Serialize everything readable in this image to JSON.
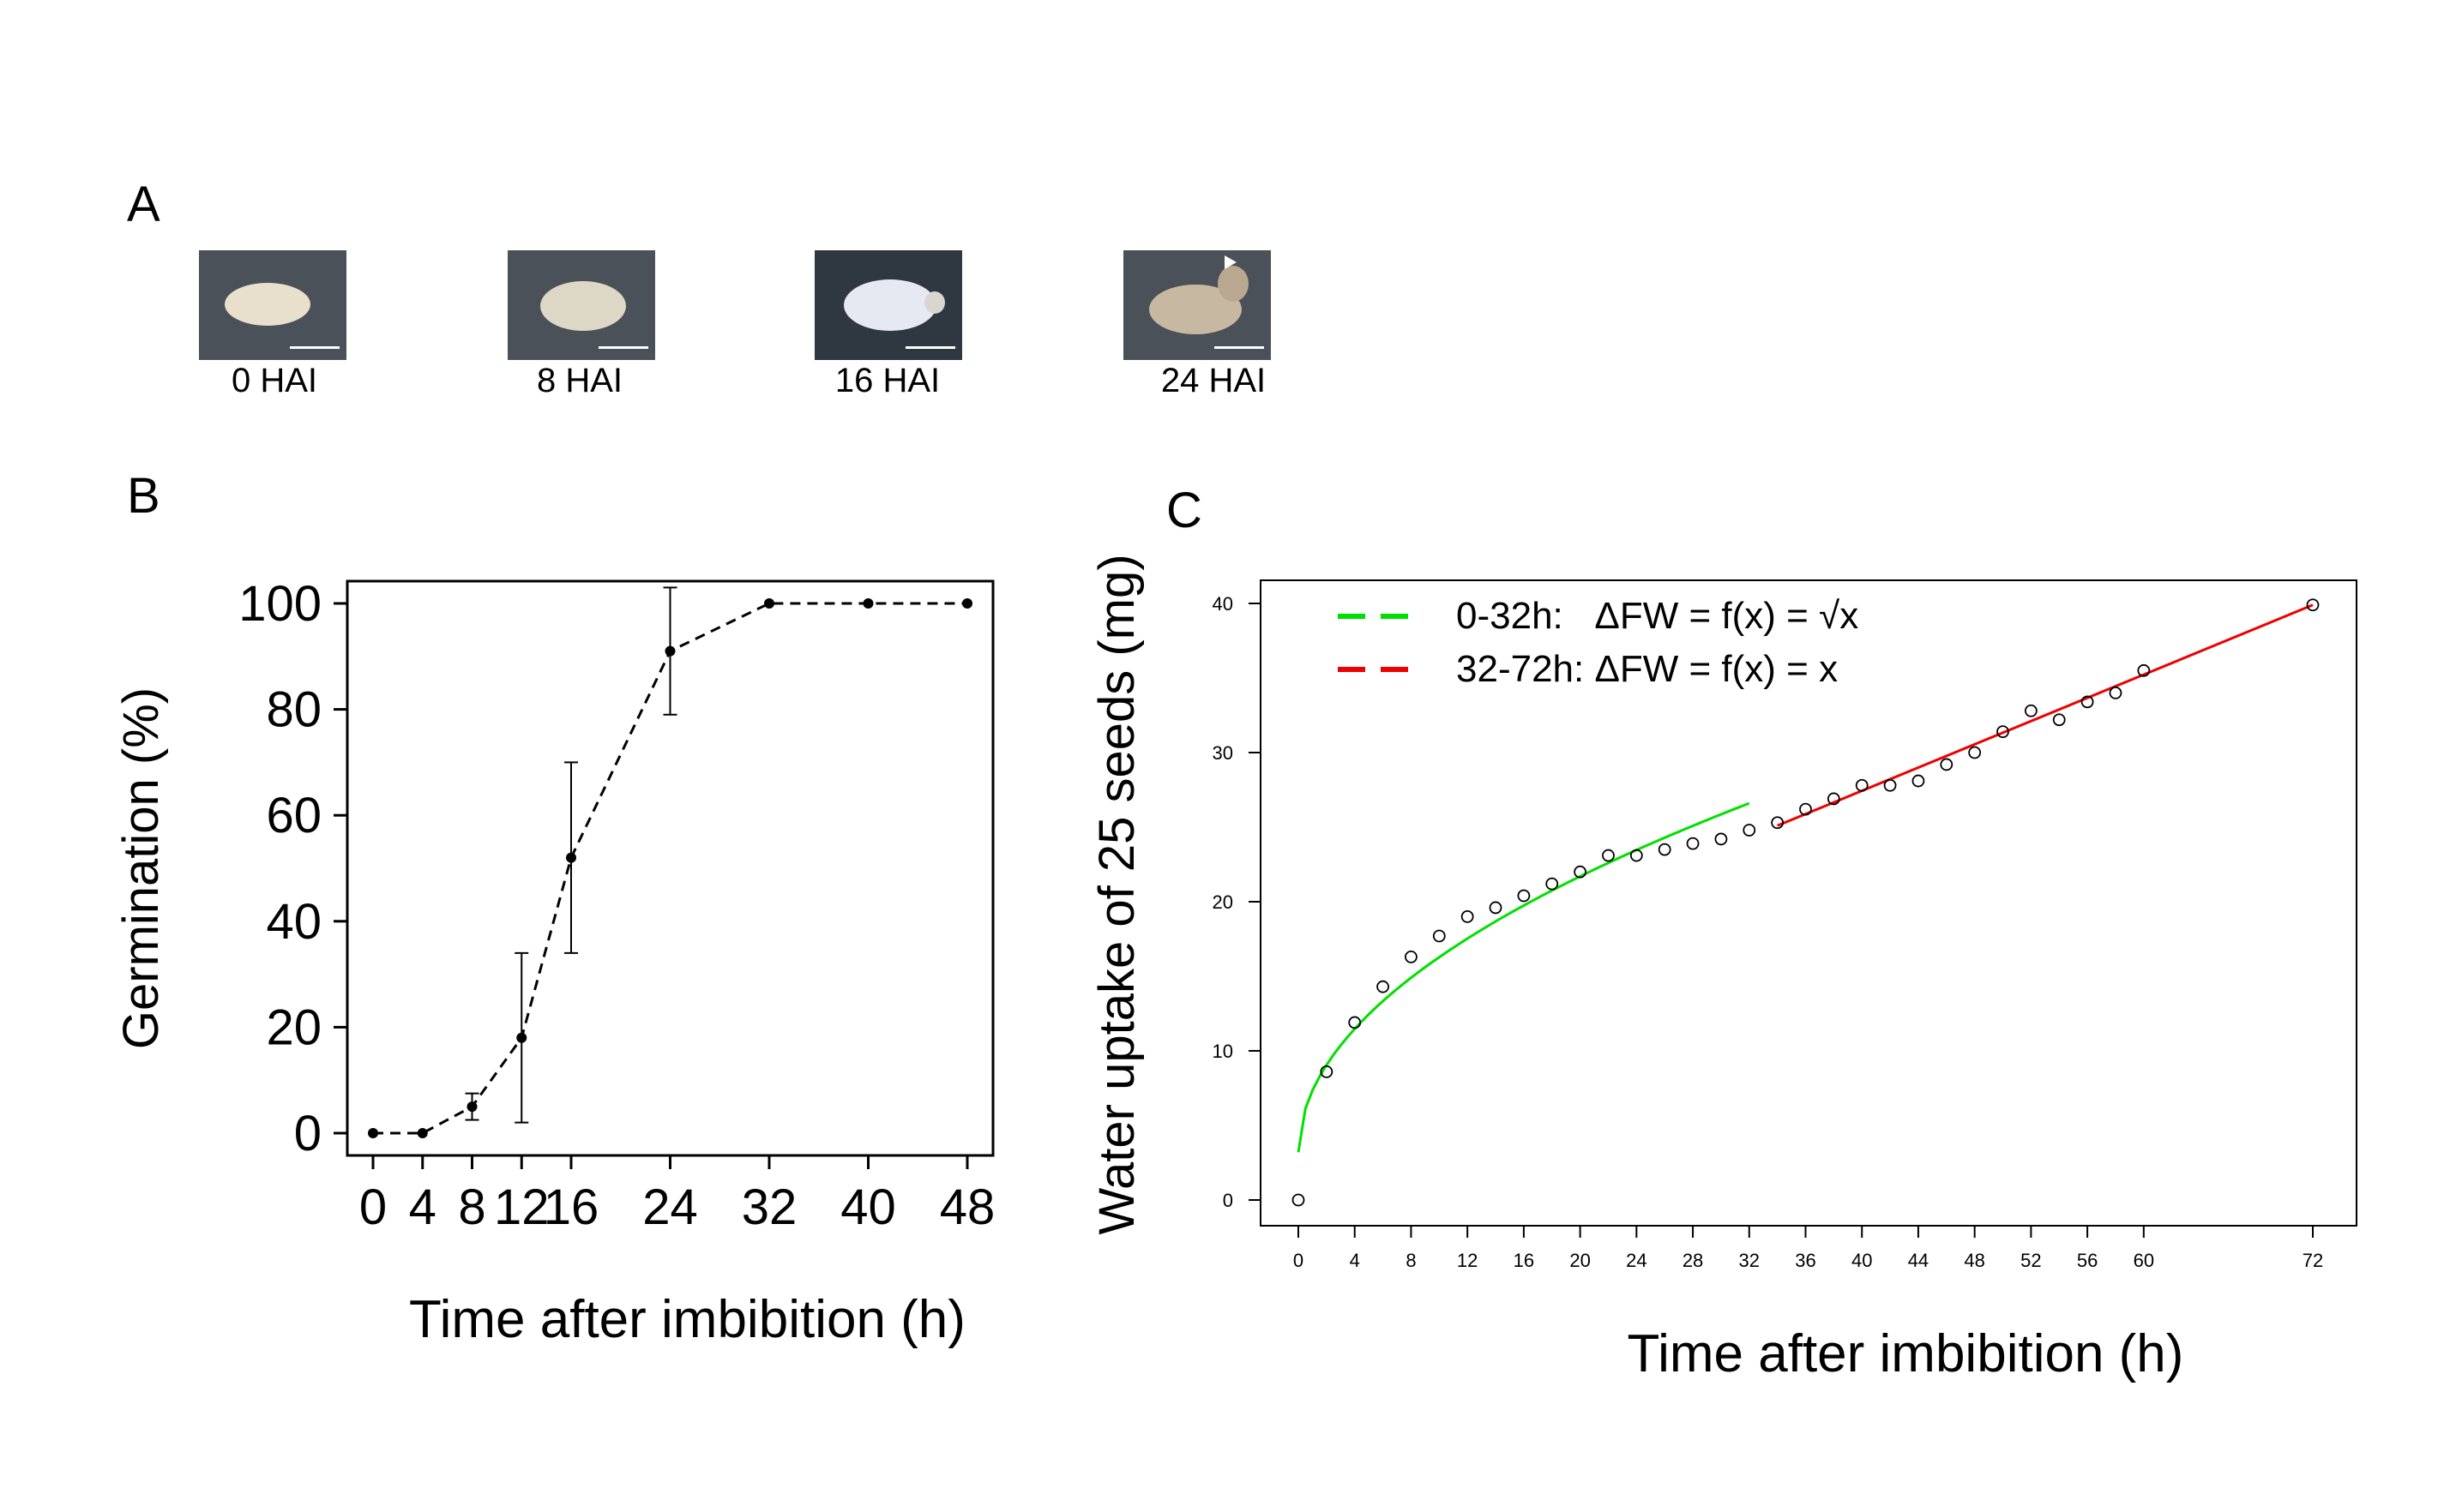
{
  "panels": {
    "a": "A",
    "b": "B",
    "c": "C"
  },
  "seeds": [
    {
      "caption": "0 HAI"
    },
    {
      "caption": "8 HAI"
    },
    {
      "caption": "16 HAI"
    },
    {
      "caption": "24 HAI"
    }
  ],
  "chart_data": [
    {
      "type": "line",
      "xlabel": "Time after imbibition (h)",
      "ylabel": "Germination (%)",
      "xlim": [
        0,
        48
      ],
      "ylim": [
        0,
        100
      ],
      "xticks": [
        0,
        4,
        8,
        12,
        16,
        24,
        32,
        40,
        48
      ],
      "yticks": [
        0,
        20,
        40,
        60,
        80,
        100
      ],
      "x": [
        0,
        4,
        8,
        12,
        16,
        24,
        32,
        40,
        48
      ],
      "values": [
        0,
        0,
        5,
        18,
        52,
        91,
        100,
        100,
        100
      ],
      "error": [
        0,
        0,
        2.5,
        16,
        18,
        12,
        0,
        0,
        0
      ],
      "line_style": "dashed",
      "grid": false
    },
    {
      "type": "scatter",
      "xlabel": "Time after imbibition (h)",
      "ylabel": "Water uptake of 25 seeds (mg)",
      "xlim": [
        0,
        72
      ],
      "ylim": [
        0,
        40
      ],
      "xticks": [
        0,
        4,
        8,
        12,
        16,
        20,
        24,
        28,
        32,
        36,
        40,
        44,
        48,
        52,
        56,
        60,
        72
      ],
      "yticks": [
        0,
        10,
        20,
        30,
        40
      ],
      "x": [
        0,
        2,
        4,
        6,
        8,
        10,
        12,
        14,
        16,
        18,
        20,
        22,
        24,
        26,
        28,
        30,
        32,
        34,
        36,
        38,
        40,
        42,
        44,
        46,
        48,
        50,
        52,
        54,
        56,
        58,
        60,
        72
      ],
      "y": [
        0,
        8.6,
        11.9,
        14.3,
        16.3,
        17.7,
        19.0,
        19.6,
        20.4,
        21.2,
        22.0,
        23.1,
        23.1,
        23.5,
        23.9,
        24.2,
        24.8,
        25.3,
        26.2,
        26.9,
        27.8,
        27.8,
        28.1,
        29.2,
        30.0,
        31.4,
        32.8,
        32.2,
        33.4,
        34.0,
        35.5,
        39.9
      ],
      "fits": [
        {
          "name": "0-32h:   ΔFW = f(x) = √x",
          "color": "#00e000",
          "x_range": [
            0,
            32
          ],
          "model": "sqrt"
        },
        {
          "name": "32-72h: ΔFW = f(x) = x",
          "color": "#ee0000",
          "x_range": [
            34,
            72
          ],
          "model": "linear"
        }
      ],
      "legend": "top-left",
      "grid": false
    }
  ]
}
